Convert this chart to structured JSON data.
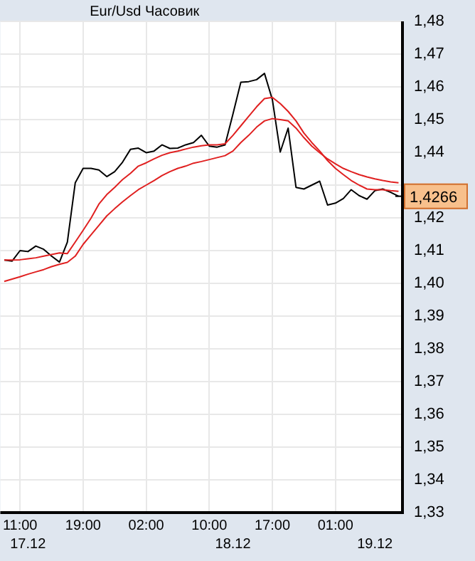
{
  "chart_data": {
    "type": "line",
    "title": "Eur/Usd Часовик",
    "categories": [
      null,
      null,
      "11:00",
      null,
      null,
      null,
      null,
      null,
      null,
      null,
      "19:00",
      null,
      null,
      null,
      null,
      null,
      null,
      null,
      "02:00",
      null,
      null,
      null,
      null,
      null,
      null,
      null,
      "10:00",
      null,
      null,
      null,
      null,
      null,
      null,
      null,
      "17:00",
      null,
      null,
      null,
      null,
      null,
      null,
      null,
      "01:00",
      null,
      null,
      null,
      null,
      null,
      null,
      null,
      null
    ],
    "series": [
      {
        "color": "#000000",
        "values": [
          1.4071,
          1.4068,
          1.41,
          1.4097,
          1.4114,
          1.4104,
          1.4083,
          1.4065,
          1.4126,
          1.4307,
          1.4351,
          1.4351,
          1.4346,
          1.4326,
          1.4341,
          1.437,
          1.4409,
          1.4413,
          1.4399,
          1.4404,
          1.4423,
          1.4412,
          1.4413,
          1.4423,
          1.443,
          1.4452,
          1.4419,
          1.4416,
          1.4423,
          1.4517,
          1.4614,
          1.4616,
          1.4622,
          1.4641,
          1.4561,
          1.4401,
          1.4474,
          1.4293,
          1.4288,
          1.43,
          1.4312,
          1.4239,
          1.4245,
          1.4259,
          1.4286,
          1.4268,
          1.4257,
          1.4283,
          1.4288,
          1.4278,
          1.4266
        ]
      },
      {
        "color": "#e02020",
        "values": [
          1.4071,
          1.4071,
          1.4072,
          1.4075,
          1.4078,
          1.4083,
          1.4088,
          1.4093,
          1.4091,
          1.4126,
          1.4162,
          1.4199,
          1.4242,
          1.4271,
          1.4293,
          1.4317,
          1.4336,
          1.4358,
          1.4368,
          1.438,
          1.4391,
          1.4399,
          1.4404,
          1.441,
          1.4416,
          1.442,
          1.4423,
          1.4423,
          1.4426,
          1.4452,
          1.4481,
          1.451,
          1.4539,
          1.4564,
          1.4568,
          1.4549,
          1.4525,
          1.4496,
          1.4459,
          1.443,
          1.4404,
          1.4375,
          1.4351,
          1.4332,
          1.4314,
          1.43,
          1.4288,
          1.4286,
          1.4286,
          1.4283,
          1.4281
        ]
      },
      {
        "color": "#e02020",
        "values": [
          1.4006,
          1.4013,
          1.402,
          1.4028,
          1.4035,
          1.4042,
          1.4051,
          1.4058,
          1.4064,
          1.4083,
          1.4119,
          1.4148,
          1.4177,
          1.4206,
          1.4228,
          1.4249,
          1.4268,
          1.4286,
          1.43,
          1.4314,
          1.4329,
          1.4341,
          1.4351,
          1.4358,
          1.4367,
          1.4372,
          1.4378,
          1.4384,
          1.439,
          1.4404,
          1.443,
          1.4452,
          1.4477,
          1.4496,
          1.4503,
          1.45,
          1.4496,
          1.4474,
          1.4445,
          1.4419,
          1.4399,
          1.438,
          1.4365,
          1.4351,
          1.4341,
          1.4332,
          1.4325,
          1.4319,
          1.4314,
          1.431,
          1.4307
        ]
      }
    ],
    "ylim": [
      1.33,
      1.48
    ],
    "yticks": [
      {
        "value": 1.33,
        "label": "1,33"
      },
      {
        "value": 1.34,
        "label": "1,34"
      },
      {
        "value": 1.35,
        "label": "1,35"
      },
      {
        "value": 1.36,
        "label": "1,36"
      },
      {
        "value": 1.37,
        "label": "1,37"
      },
      {
        "value": 1.38,
        "label": "1,38"
      },
      {
        "value": 1.39,
        "label": "1,39"
      },
      {
        "value": 1.4,
        "label": "1,40"
      },
      {
        "value": 1.41,
        "label": "1,41"
      },
      {
        "value": 1.42,
        "label": "1,42"
      },
      {
        "value": 1.43,
        "label": null
      },
      {
        "value": 1.44,
        "label": "1,44"
      },
      {
        "value": 1.45,
        "label": "1,45"
      },
      {
        "value": 1.46,
        "label": "1,46"
      },
      {
        "value": 1.47,
        "label": "1,47"
      },
      {
        "value": 1.48,
        "label": "1,48"
      }
    ],
    "annotations": [
      "17.12",
      "18.12",
      "19.12",
      {
        "text": "1,4266",
        "y": 1.4266
      }
    ],
    "grid": true,
    "legend": false,
    "marker": "none",
    "line_style": "solid"
  }
}
